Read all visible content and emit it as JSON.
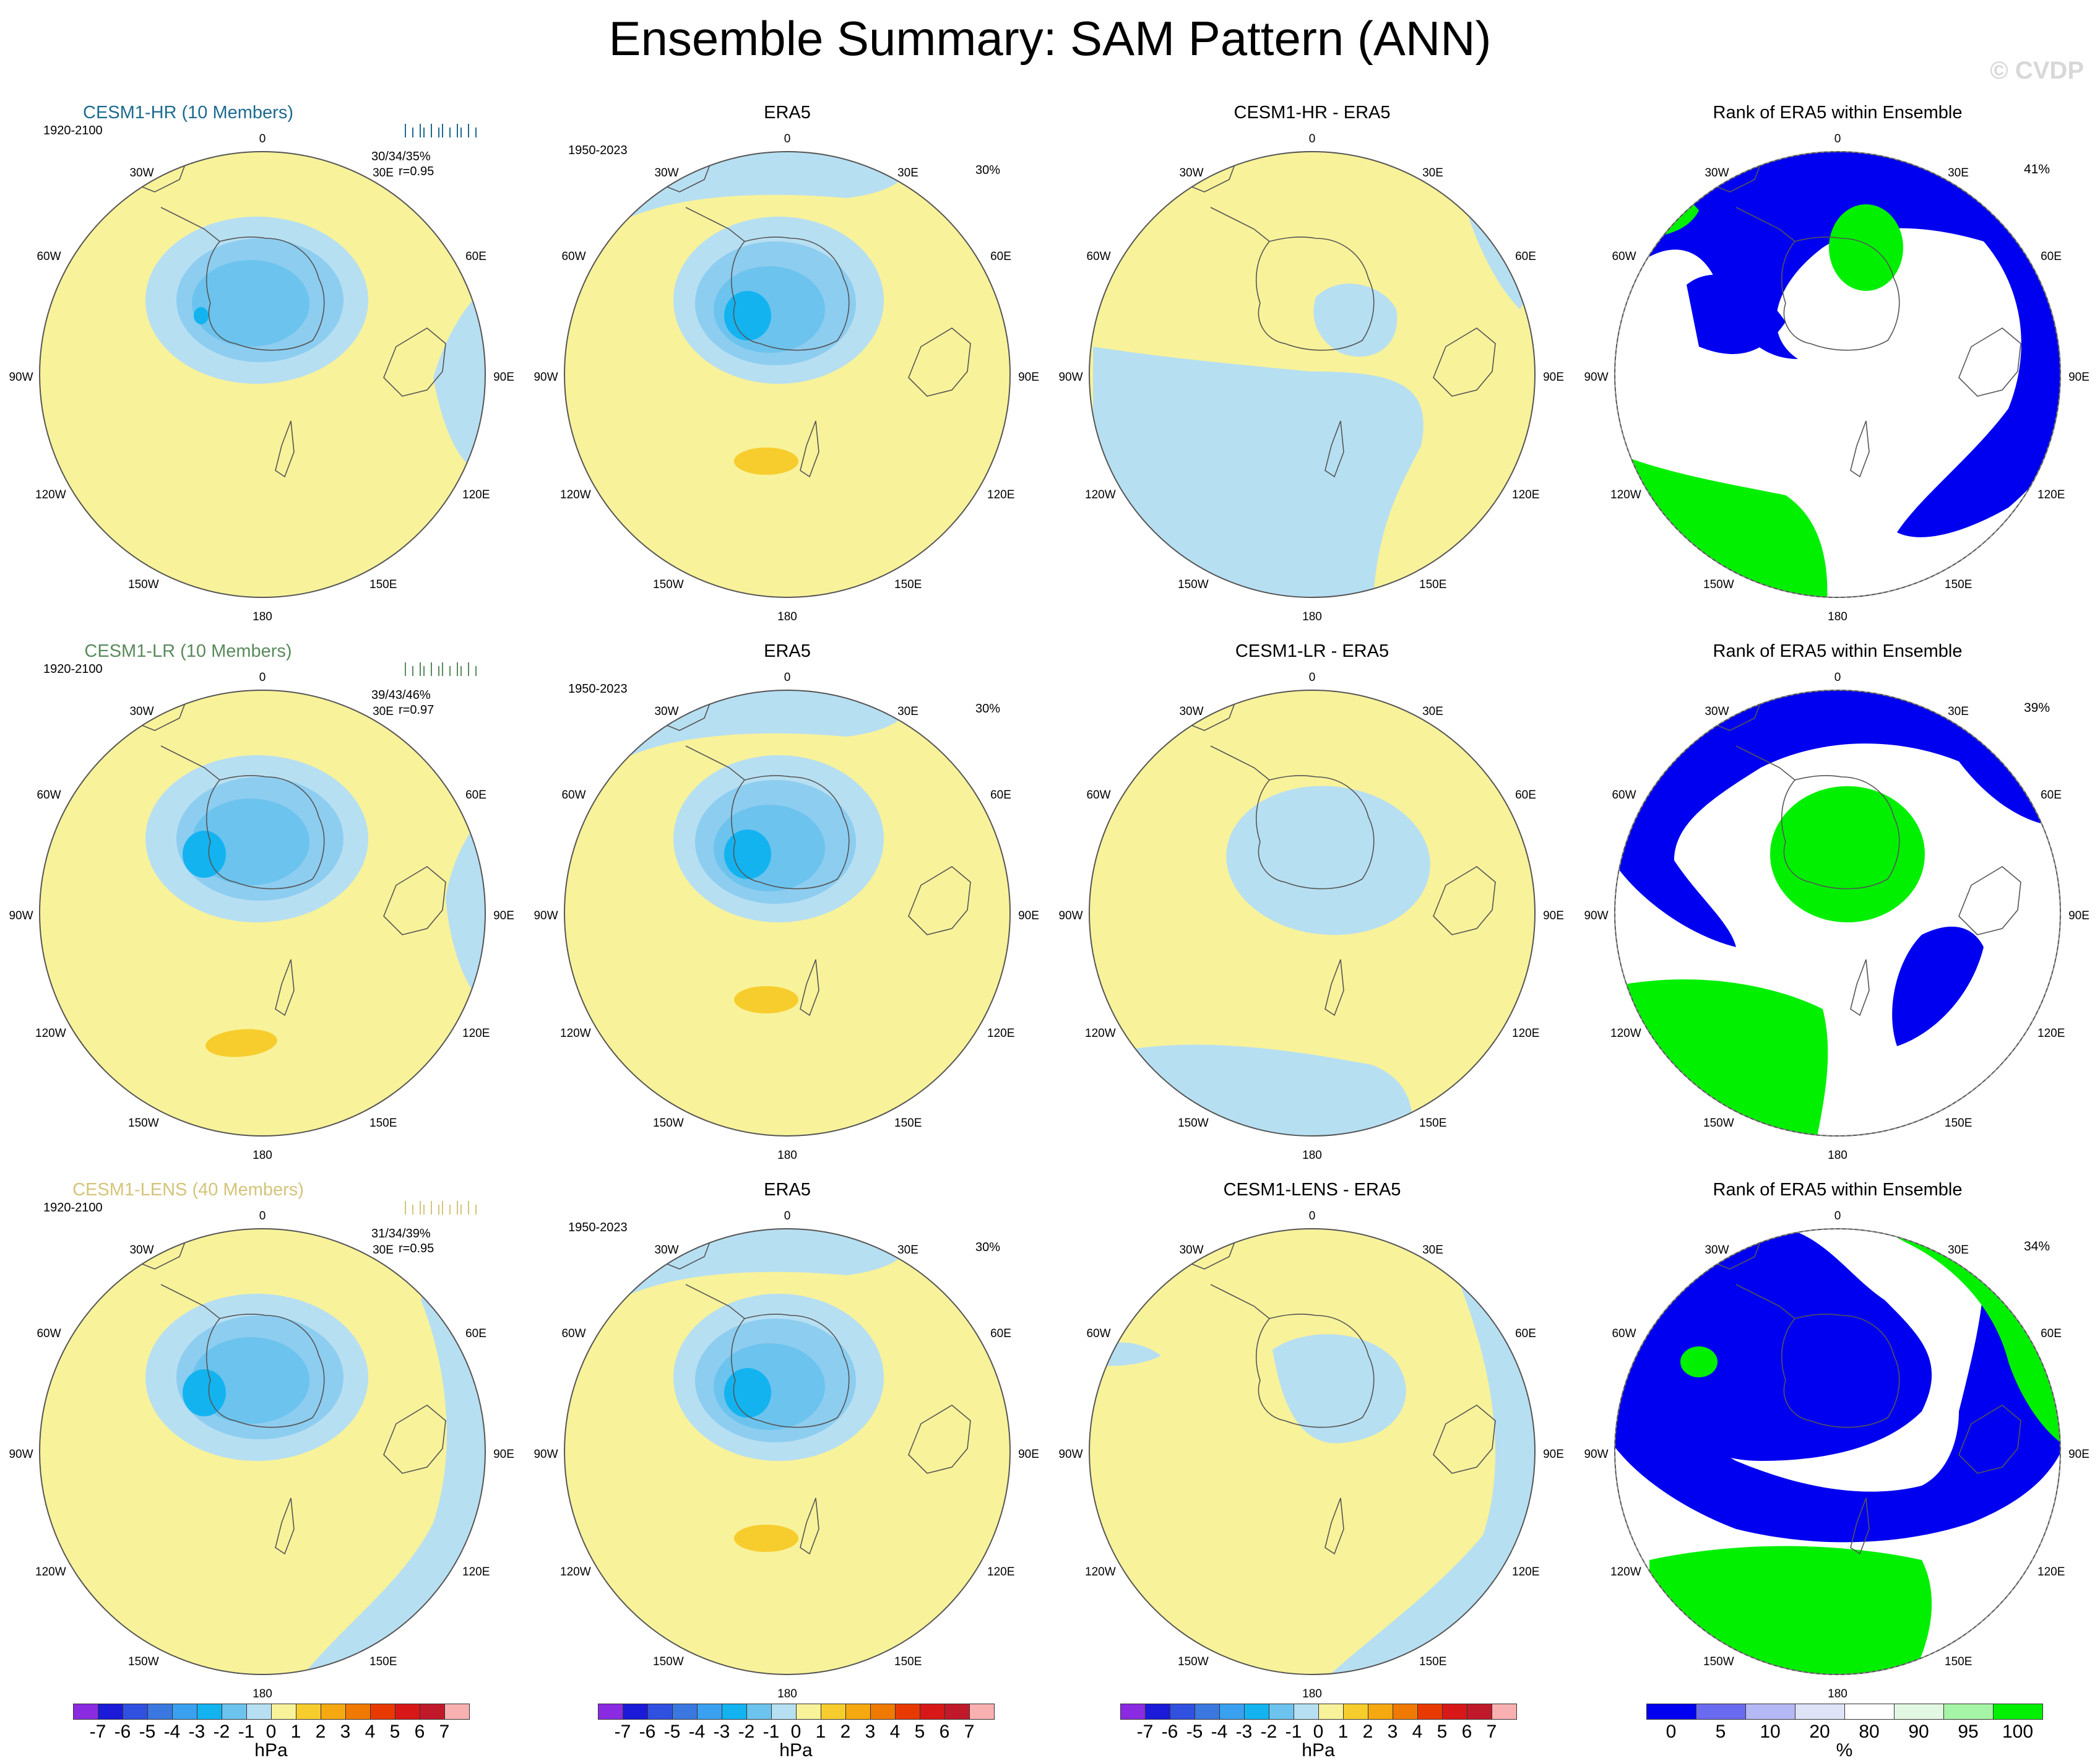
{
  "title": "Ensemble Summary: SAM Pattern (ANN)",
  "watermark": "© CVDP",
  "colors": {
    "ocean_pos": "#f8f29a",
    "neg1": "#b7dff2",
    "neg2": "#8dcdf0",
    "neg3": "#6cc3ee",
    "neg4": "#13b3f0",
    "pos2": "#f7cd2e",
    "rank_blue": "#0000f0",
    "rank_green": "#00f000",
    "rank_lav": "#dfe3f8",
    "rank_white": "#ffffff",
    "rank_lgreen": "#c6f7c6"
  },
  "lon_labels": [
    "0",
    "30E",
    "60E",
    "90E",
    "120E",
    "150E",
    "180",
    "150W",
    "120W",
    "90W",
    "60W",
    "30W"
  ],
  "rows": [
    {
      "model_title": "CESM1-HR (10 Members)",
      "model_color": "#1d6b8f",
      "model_period": "1920-2100",
      "model_stats": "30/34/35%",
      "model_r": "r=0.95",
      "obs_title": "ERA5",
      "obs_period": "1950-2023",
      "obs_pct": "30%",
      "diff_title": "CESM1-HR - ERA5",
      "rank_title": "Rank of ERA5 within Ensemble",
      "rank_pct": "41%"
    },
    {
      "model_title": "CESM1-LR (10 Members)",
      "model_color": "#5a8a5c",
      "model_period": "1920-2100",
      "model_stats": "39/43/46%",
      "model_r": "r=0.97",
      "obs_title": "ERA5",
      "obs_period": "1950-2023",
      "obs_pct": "30%",
      "diff_title": "CESM1-LR - ERA5",
      "rank_title": "Rank of ERA5 within Ensemble",
      "rank_pct": "39%"
    },
    {
      "model_title": "CESM1-LENS (40 Members)",
      "model_color": "#d4c47a",
      "model_period": "1920-2100",
      "model_stats": "31/34/39%",
      "model_r": "r=0.95",
      "obs_title": "ERA5",
      "obs_period": "1950-2023",
      "obs_pct": "30%",
      "diff_title": "CESM1-LENS - ERA5",
      "rank_title": "Rank of ERA5 within Ensemble",
      "rank_pct": "34%"
    }
  ],
  "chart_data": {
    "type": "heatmap",
    "projection": "south polar stereographic",
    "colorbar_hpa": {
      "labels": [
        "-7",
        "-6",
        "-5",
        "-4",
        "-3",
        "-2",
        "-1",
        "0",
        "1",
        "2",
        "3",
        "4",
        "5",
        "6",
        "7"
      ],
      "colors": [
        "#8a2be2",
        "#1a1ad8",
        "#3050e0",
        "#3a78e0",
        "#3aa0f0",
        "#13b3f0",
        "#6cc3ee",
        "#b7dff2",
        "#f8f29a",
        "#f7cd2e",
        "#f5a810",
        "#f07a00",
        "#e83a00",
        "#d81818",
        "#c01a2a",
        "#f8b0b0"
      ],
      "unit": "hPa"
    },
    "colorbar_rank": {
      "labels": [
        "0",
        "5",
        "10",
        "20",
        "80",
        "90",
        "95",
        "100"
      ],
      "colors": [
        "#0000f0",
        "#6a6af0",
        "#b4b8f4",
        "#dfe3f8",
        "#ffffff",
        "#e3f8e3",
        "#a6f5a6",
        "#00f000"
      ],
      "unit": "%"
    }
  }
}
